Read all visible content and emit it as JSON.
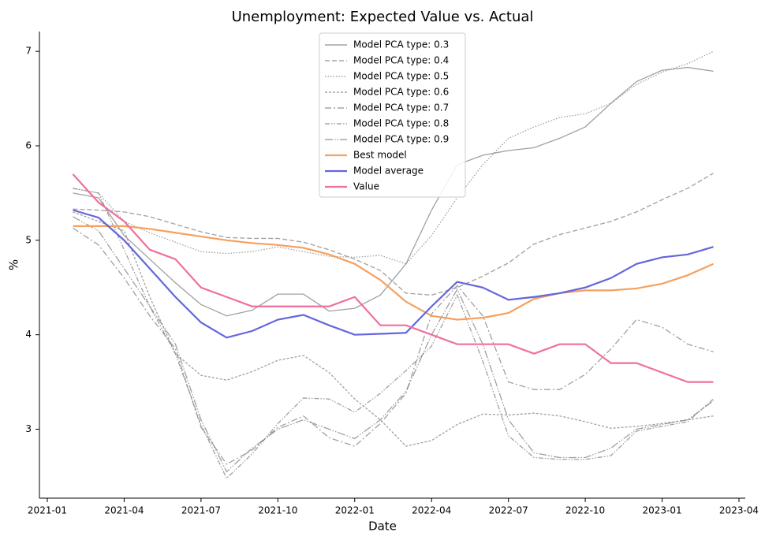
{
  "chart_data": {
    "type": "line",
    "title": "Unemployment: Expected Value vs. Actual",
    "xlabel": "Date",
    "ylabel": "%",
    "x": [
      "2021-02",
      "2021-03",
      "2021-04",
      "2021-05",
      "2021-06",
      "2021-07",
      "2021-08",
      "2021-09",
      "2021-10",
      "2021-11",
      "2021-12",
      "2022-01",
      "2022-02",
      "2022-03",
      "2022-04",
      "2022-05",
      "2022-06",
      "2022-07",
      "2022-08",
      "2022-09",
      "2022-10",
      "2022-11",
      "2022-12",
      "2023-01",
      "2023-02",
      "2023-03"
    ],
    "xlim": [
      "2021-01",
      "2023-04"
    ],
    "xticks": [
      "2021-01",
      "2021-04",
      "2021-07",
      "2021-10",
      "2022-01",
      "2022-04",
      "2022-07",
      "2022-10",
      "2023-01",
      "2023-04"
    ],
    "ylim": [
      2.27,
      7.21
    ],
    "yticks": [
      3,
      4,
      5,
      6,
      7
    ],
    "series": [
      {
        "name": "Model PCA type: 0.3",
        "color": "#808080",
        "linestyle": "solid",
        "values": [
          5.5,
          5.45,
          5.05,
          4.8,
          4.55,
          4.32,
          4.2,
          4.26,
          4.43,
          4.43,
          4.25,
          4.28,
          4.42,
          4.75,
          5.32,
          5.8,
          5.9,
          5.95,
          5.98,
          6.08,
          6.2,
          6.45,
          6.68,
          6.8,
          6.83,
          6.79
        ]
      },
      {
        "name": "Model PCA type: 0.4",
        "color": "#808080",
        "linestyle": "dashed",
        "values": [
          5.33,
          5.32,
          5.3,
          5.25,
          5.17,
          5.09,
          5.03,
          5.02,
          5.02,
          4.98,
          4.9,
          4.8,
          4.68,
          4.44,
          4.42,
          4.5,
          4.62,
          4.76,
          4.96,
          5.06,
          5.13,
          5.2,
          5.3,
          5.43,
          5.55,
          5.71
        ]
      },
      {
        "name": "Model PCA type: 0.5",
        "color": "#808080",
        "linestyle": "dotted",
        "values": [
          5.55,
          5.5,
          5.2,
          5.08,
          4.98,
          4.88,
          4.86,
          4.88,
          4.93,
          4.88,
          4.83,
          4.82,
          4.84,
          4.75,
          5.05,
          5.45,
          5.8,
          6.08,
          6.2,
          6.3,
          6.34,
          6.45,
          6.65,
          6.78,
          6.87,
          7.0
        ]
      },
      {
        "name": "Model PCA type: 0.6",
        "color": "#808080",
        "linestyle": "shortdash",
        "values": [
          5.3,
          5.2,
          5.1,
          4.4,
          3.8,
          3.57,
          3.52,
          3.61,
          3.73,
          3.78,
          3.6,
          3.32,
          3.1,
          2.82,
          2.88,
          3.05,
          3.16,
          3.15,
          3.17,
          3.14,
          3.08,
          3.01,
          3.03,
          3.06,
          3.1,
          3.14
        ]
      },
      {
        "name": "Model PCA type: 0.7",
        "color": "#808080",
        "linestyle": "dashdot",
        "values": [
          5.13,
          4.95,
          4.6,
          4.2,
          3.85,
          3.02,
          2.63,
          2.78,
          3.02,
          3.14,
          2.91,
          2.82,
          3.06,
          3.38,
          4.22,
          4.52,
          4.2,
          3.5,
          3.42,
          3.42,
          3.58,
          3.85,
          4.16,
          4.08,
          3.9,
          3.82
        ]
      },
      {
        "name": "Model PCA type: 0.8",
        "color": "#808080",
        "linestyle": "dashdotdot",
        "values": [
          5.55,
          5.5,
          4.9,
          4.3,
          3.8,
          3.05,
          2.48,
          2.74,
          3.06,
          3.33,
          3.32,
          3.18,
          3.38,
          3.62,
          3.88,
          4.42,
          3.72,
          2.93,
          2.7,
          2.68,
          2.68,
          2.72,
          2.98,
          3.03,
          3.08,
          3.32
        ]
      },
      {
        "name": "Model PCA type: 0.9",
        "color": "#808080",
        "linestyle": "longdashdotdot",
        "values": [
          5.25,
          5.1,
          4.7,
          4.3,
          3.9,
          3.1,
          2.55,
          2.8,
          3.0,
          3.1,
          3.0,
          2.9,
          3.1,
          3.4,
          4.0,
          4.48,
          3.9,
          3.1,
          2.75,
          2.7,
          2.7,
          2.8,
          3.0,
          3.05,
          3.1,
          3.3
        ]
      },
      {
        "name": "Best model",
        "color": "#f5a05f",
        "linestyle": "solid",
        "width": 2.2,
        "values": [
          5.15,
          5.15,
          5.15,
          5.12,
          5.08,
          5.04,
          5.0,
          4.97,
          4.95,
          4.92,
          4.85,
          4.75,
          4.58,
          4.35,
          4.2,
          4.16,
          4.18,
          4.23,
          4.38,
          4.44,
          4.47,
          4.47,
          4.49,
          4.54,
          4.63,
          4.75
        ]
      },
      {
        "name": "Model average",
        "color": "#6466dd",
        "linestyle": "solid",
        "width": 2.2,
        "values": [
          5.32,
          5.24,
          5.0,
          4.7,
          4.4,
          4.13,
          3.97,
          4.04,
          4.16,
          4.21,
          4.1,
          4.0,
          4.01,
          4.02,
          4.3,
          4.56,
          4.5,
          4.37,
          4.4,
          4.44,
          4.5,
          4.6,
          4.75,
          4.82,
          4.85,
          4.93
        ]
      },
      {
        "name": "Value",
        "color": "#ef6fa0",
        "linestyle": "solid",
        "width": 2.2,
        "values": [
          5.7,
          5.4,
          5.2,
          4.9,
          4.8,
          4.5,
          4.4,
          4.3,
          4.3,
          4.3,
          4.3,
          4.4,
          4.1,
          4.1,
          4.0,
          3.9,
          3.9,
          3.9,
          3.8,
          3.9,
          3.9,
          3.7,
          3.7,
          3.6,
          3.5,
          3.5
        ]
      }
    ]
  }
}
